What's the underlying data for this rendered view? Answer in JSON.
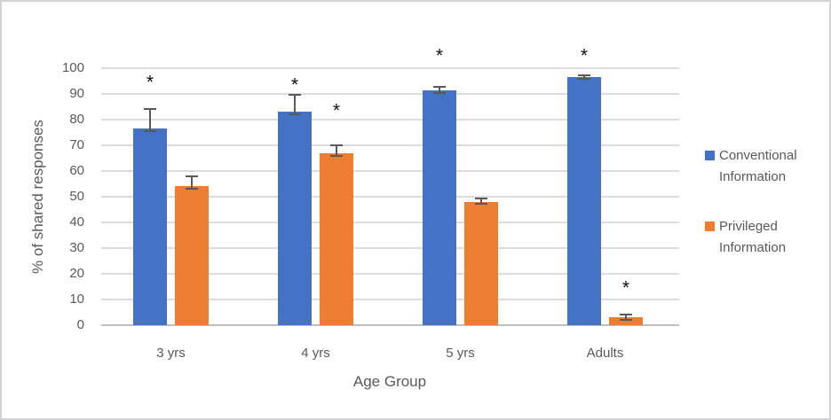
{
  "chart_data": {
    "type": "bar",
    "title": "",
    "xlabel": "Age Group",
    "ylabel": "% of shared responses",
    "ylim": [
      0,
      100
    ],
    "ytick_step": 10,
    "yticks": [
      0,
      10,
      20,
      30,
      40,
      50,
      60,
      70,
      80,
      90,
      100
    ],
    "categories": [
      "3 yrs",
      "4 yrs",
      "5 yrs",
      "Adults"
    ],
    "series": [
      {
        "name": "Conventional Information",
        "color": "#4472C4",
        "values": [
          76.5,
          83,
          91.5,
          96.5
        ],
        "error_plus": [
          7.5,
          6.5,
          1.2,
          0.8
        ],
        "error_minus": [
          1,
          1,
          1,
          0.8
        ],
        "asterisk": [
          true,
          true,
          true,
          true
        ],
        "asterisk_y": [
          94,
          93,
          104.5,
          104.5
        ]
      },
      {
        "name": "Privileged Information",
        "color": "#ED7D31",
        "values": [
          54,
          67,
          48,
          3
        ],
        "error_plus": [
          4,
          3.1,
          1.2,
          1
        ],
        "error_minus": [
          1,
          1.2,
          0.8,
          0.8
        ],
        "asterisk": [
          false,
          true,
          false,
          true
        ],
        "asterisk_y": [
          null,
          83,
          null,
          14
        ]
      }
    ],
    "grid": true,
    "legend_position": "right",
    "significance_marker": "*"
  },
  "legend": {
    "items": [
      {
        "lines": [
          "Conventional",
          "Information"
        ],
        "color": "#4472C4"
      },
      {
        "lines": [
          "Privileged",
          "Information"
        ],
        "color": "#ED7D31"
      }
    ]
  },
  "style_colors": {
    "gridline": "#dcdcdc",
    "axis_line": "#bfbfbf",
    "text": "#595959",
    "error_bar": "#595959",
    "asterisk": "#111111",
    "background": "#ffffff",
    "figure_border": "#d3d3d7"
  }
}
